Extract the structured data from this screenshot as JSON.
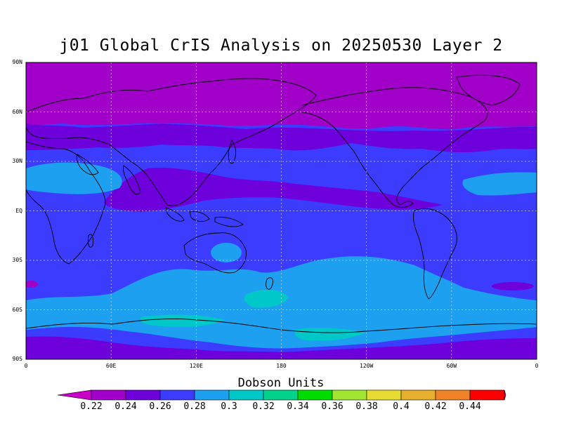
{
  "title": "j01 Global CrIS Analysis on 20250530 Layer 2",
  "colorbar": {
    "title": "Dobson Units",
    "ticks": [
      "0.22",
      "0.24",
      "0.26",
      "0.28",
      "0.3",
      "0.32",
      "0.34",
      "0.36",
      "0.38",
      "0.4",
      "0.42",
      "0.44"
    ],
    "colors": [
      "#a000c8",
      "#6e00dc",
      "#3c3cff",
      "#1ea0f0",
      "#00c8c8",
      "#00d28c",
      "#00dc00",
      "#a0e632",
      "#e6dc32",
      "#e6af2d",
      "#f08228",
      "#fa0000"
    ],
    "under_color": "#c800c8",
    "over_color": "#e6005a"
  },
  "axes": {
    "lat_labels": [
      "90N",
      "60N",
      "30N",
      "EQ",
      "30S",
      "60S",
      "90S"
    ],
    "lon_labels": [
      "0",
      "60E",
      "120E",
      "180",
      "120W",
      "60W",
      "0"
    ]
  },
  "chart_data": {
    "type": "heatmap",
    "title": "j01 Global CrIS Analysis on 20250530 Layer 2",
    "units": "Dobson Units",
    "x_range": [
      0,
      360
    ],
    "y_range": [
      -90,
      90
    ],
    "grid": true,
    "legend": "bottom",
    "lat_bands": [
      {
        "lat": [
          64,
          90
        ],
        "value": 0.225
      },
      {
        "lat": [
          48,
          64
        ],
        "value": 0.23
      },
      {
        "lat": [
          30,
          48
        ],
        "value": 0.245
      },
      {
        "lat": [
          12,
          30
        ],
        "value": 0.255
      },
      {
        "lat": [
          -25,
          12
        ],
        "value": 0.25
      },
      {
        "lat": [
          -52,
          -25
        ],
        "value": 0.265
      },
      {
        "lat": [
          -78,
          -52
        ],
        "value": 0.27
      },
      {
        "lat": [
          -90,
          -78
        ],
        "value": 0.25
      }
    ]
  }
}
